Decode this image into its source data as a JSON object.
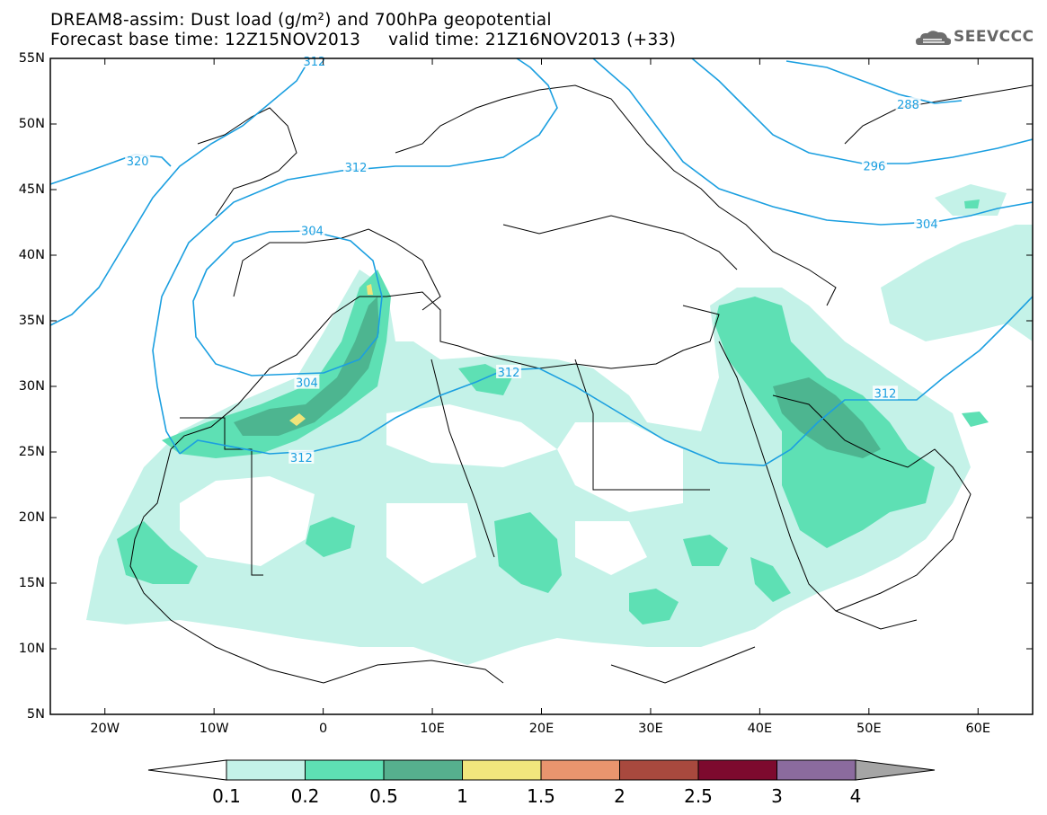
{
  "header": {
    "title_line1": "DREAM8-assim: Dust load (g/m²) and 700hPa geopotential",
    "title_line2": "Forecast base time: 12Z15NOV2013     valid time: 21Z16NOV2013 (+33)",
    "logo_text": "SEEVCCC"
  },
  "map": {
    "extent": {
      "lon_min": -25,
      "lon_max": 65,
      "lat_min": 5,
      "lat_max": 55
    },
    "lat_ticks": [
      {
        "value": 55,
        "label": "55N"
      },
      {
        "value": 50,
        "label": "50N"
      },
      {
        "value": 45,
        "label": "45N"
      },
      {
        "value": 40,
        "label": "40N"
      },
      {
        "value": 35,
        "label": "35N"
      },
      {
        "value": 30,
        "label": "30N"
      },
      {
        "value": 25,
        "label": "25N"
      },
      {
        "value": 20,
        "label": "20N"
      },
      {
        "value": 15,
        "label": "15N"
      },
      {
        "value": 10,
        "label": "10N"
      },
      {
        "value": 5,
        "label": "5N"
      }
    ],
    "lon_ticks": [
      {
        "value": -20,
        "label": "20W"
      },
      {
        "value": -10,
        "label": "10W"
      },
      {
        "value": 0,
        "label": "0"
      },
      {
        "value": 10,
        "label": "10E"
      },
      {
        "value": 20,
        "label": "20E"
      },
      {
        "value": 30,
        "label": "30E"
      },
      {
        "value": 40,
        "label": "40E"
      },
      {
        "value": 50,
        "label": "50E"
      },
      {
        "value": 60,
        "label": "60E"
      }
    ],
    "contour_color": "#1b9fe0",
    "contour_labels": [
      {
        "text": "320",
        "lon": -17,
        "lat": 47.2
      },
      {
        "text": "312",
        "lon": 3,
        "lat": 46.7
      },
      {
        "text": "312",
        "lon": -0.8,
        "lat": 54.8
      },
      {
        "text": "304",
        "lon": -1,
        "lat": 41.9
      },
      {
        "text": "304",
        "lon": -1.5,
        "lat": 30.3
      },
      {
        "text": "312",
        "lon": -2,
        "lat": 24.6
      },
      {
        "text": "312",
        "lon": 17,
        "lat": 31.1
      },
      {
        "text": "312",
        "lon": 51.5,
        "lat": 29.5
      },
      {
        "text": "304",
        "lon": 55.3,
        "lat": 42.4
      },
      {
        "text": "296",
        "lon": 50.5,
        "lat": 46.8
      },
      {
        "text": "288",
        "lon": 53.6,
        "lat": 51.5
      }
    ],
    "dust_colors": [
      "#c4f2e8",
      "#5ee0b4",
      "#4db590",
      "#f0e47a"
    ]
  },
  "colorbar": {
    "labels": [
      "0.1",
      "0.2",
      "0.5",
      "1",
      "1.5",
      "2",
      "2.5",
      "3",
      "4"
    ],
    "colors": [
      "#ffffff",
      "#c4f2e8",
      "#5ee0b4",
      "#56b08e",
      "#f1e67d",
      "#e9956e",
      "#a8493e",
      "#7d0a2e",
      "#8b6b9e",
      "#a5a5a5"
    ]
  }
}
